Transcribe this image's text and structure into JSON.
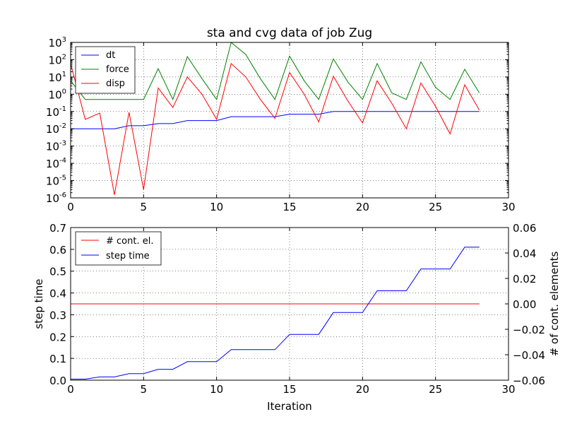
{
  "chart_data": [
    {
      "type": "line",
      "title": "sta and cvg data of job Zug",
      "xlabel": "",
      "ylabel": "",
      "xlim": [
        0,
        30
      ],
      "ylim": [
        1e-06,
        1000
      ],
      "yscale": "log",
      "grid": true,
      "legend_placement": "top-left",
      "x_ticks": [
        "0",
        "5",
        "10",
        "15",
        "20",
        "25",
        "30"
      ],
      "y_ticks": [
        {
          "base": "10",
          "exp": "-6"
        },
        {
          "base": "10",
          "exp": "-5"
        },
        {
          "base": "10",
          "exp": "-4"
        },
        {
          "base": "10",
          "exp": "-3"
        },
        {
          "base": "10",
          "exp": "-2"
        },
        {
          "base": "10",
          "exp": "-1"
        },
        {
          "base": "10",
          "exp": "0"
        },
        {
          "base": "10",
          "exp": "1"
        },
        {
          "base": "10",
          "exp": "2"
        },
        {
          "base": "10",
          "exp": "3"
        }
      ],
      "x": [
        0,
        1,
        2,
        3,
        4,
        5,
        6,
        7,
        8,
        9,
        10,
        11,
        12,
        13,
        14,
        15,
        16,
        17,
        18,
        19,
        20,
        21,
        22,
        23,
        24,
        25,
        26,
        27,
        28
      ],
      "series": [
        {
          "name": "dt",
          "color": "#0000ff",
          "values": [
            0.01,
            0.01,
            0.01,
            0.01,
            0.015,
            0.015,
            0.02,
            0.02,
            0.03,
            0.03,
            0.03,
            0.05,
            0.05,
            0.05,
            0.05,
            0.07,
            0.07,
            0.07,
            0.1,
            0.1,
            0.1,
            0.1,
            0.1,
            0.1,
            0.1,
            0.1,
            0.1,
            0.1,
            0.1
          ]
        },
        {
          "name": "force",
          "color": "#008000",
          "values": [
            6,
            0.5,
            0.5,
            0.5,
            0.5,
            0.5,
            30,
            0.5,
            150,
            8,
            0.5,
            1000,
            200,
            8,
            0.5,
            160,
            6,
            0.5,
            110,
            5,
            0.5,
            60,
            1.2,
            0.5,
            75,
            2.5,
            0.5,
            28,
            1.2
          ]
        },
        {
          "name": "disp",
          "color": "#ff0000",
          "values": [
            60,
            0.035,
            0.08,
            1.5e-06,
            0.09,
            3e-06,
            2.3,
            0.17,
            10,
            1,
            0.035,
            60,
            10,
            0.5,
            0.04,
            18,
            1,
            0.025,
            11,
            0.4,
            0.022,
            6,
            0.3,
            0.01,
            4.5,
            0.2,
            0.005,
            3.5,
            0.12
          ]
        }
      ]
    },
    {
      "type": "line",
      "title": "",
      "xlabel": "Iteration",
      "ylabel": "step time",
      "y2label": "# of cont. elements",
      "xlim": [
        0,
        30
      ],
      "ylim": [
        0,
        0.7
      ],
      "y2lim": [
        -0.06,
        0.06
      ],
      "grid": true,
      "legend_placement": "top-left",
      "x_ticks": [
        "0",
        "5",
        "10",
        "15",
        "20",
        "25",
        "30"
      ],
      "y_ticks": [
        "0.0",
        "0.1",
        "0.2",
        "0.3",
        "0.4",
        "0.5",
        "0.6",
        "0.7"
      ],
      "y2_ticks": [
        "−0.06",
        "−0.04",
        "−0.02",
        "0.00",
        "0.02",
        "0.04",
        "0.06"
      ],
      "x": [
        0,
        1,
        2,
        3,
        4,
        5,
        6,
        7,
        8,
        9,
        10,
        11,
        12,
        13,
        14,
        15,
        16,
        17,
        18,
        19,
        20,
        21,
        22,
        23,
        24,
        25,
        26,
        27,
        28
      ],
      "series": [
        {
          "name": "# cont. el.",
          "color": "#ff0000",
          "axis": "right",
          "values": [
            0,
            0,
            0,
            0,
            0,
            0,
            0,
            0,
            0,
            0,
            0,
            0,
            0,
            0,
            0,
            0,
            0,
            0,
            0,
            0,
            0,
            0,
            0,
            0,
            0,
            0,
            0,
            0,
            0
          ]
        },
        {
          "name": "step time",
          "color": "#0000ff",
          "axis": "left",
          "values": [
            0.005,
            0.005,
            0.015,
            0.015,
            0.03,
            0.03,
            0.05,
            0.05,
            0.085,
            0.085,
            0.085,
            0.14,
            0.14,
            0.14,
            0.14,
            0.21,
            0.21,
            0.21,
            0.31,
            0.31,
            0.31,
            0.41,
            0.41,
            0.41,
            0.51,
            0.51,
            0.51,
            0.61,
            0.61
          ]
        }
      ]
    }
  ]
}
